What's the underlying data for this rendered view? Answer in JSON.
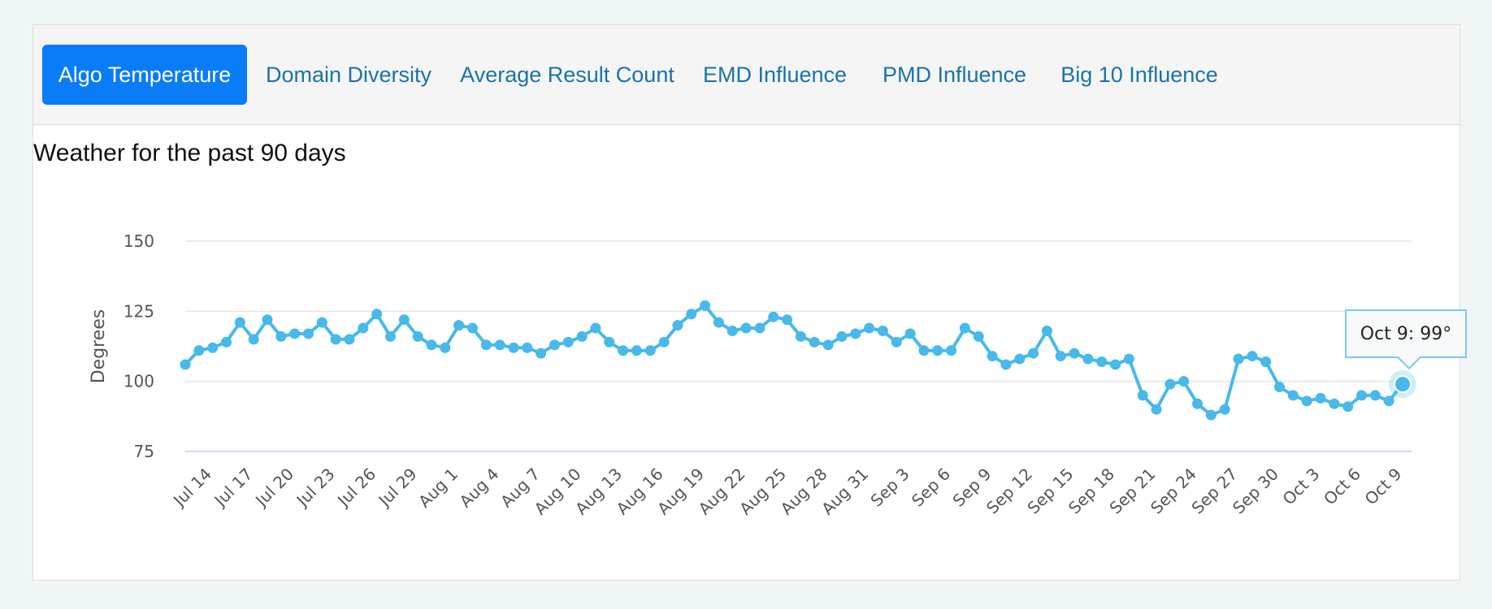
{
  "tabs": [
    {
      "label": "Algo Temperature",
      "active": true
    },
    {
      "label": "Domain Diversity",
      "active": false
    },
    {
      "label": "Average Result Count",
      "active": false
    },
    {
      "label": "EMD Influence",
      "active": false
    },
    {
      "label": "PMD Influence",
      "active": false
    },
    {
      "label": "Big 10 Influence",
      "active": false
    }
  ],
  "colors": {
    "accent": "#0a7cf7",
    "line": "#47b9ea",
    "tab_text": "#1a73a8"
  },
  "chart_data": {
    "type": "line",
    "title": "Weather for the past 90 days",
    "xlabel": "",
    "ylabel": "Degrees",
    "ylim": [
      75,
      150
    ],
    "yticks": [
      75,
      100,
      125,
      150
    ],
    "grid": true,
    "x": [
      "Jul 12",
      "Jul 13",
      "Jul 14",
      "Jul 15",
      "Jul 16",
      "Jul 17",
      "Jul 18",
      "Jul 19",
      "Jul 20",
      "Jul 21",
      "Jul 22",
      "Jul 23",
      "Jul 24",
      "Jul 25",
      "Jul 26",
      "Jul 27",
      "Jul 28",
      "Jul 29",
      "Jul 30",
      "Jul 31",
      "Aug 1",
      "Aug 2",
      "Aug 3",
      "Aug 4",
      "Aug 5",
      "Aug 6",
      "Aug 7",
      "Aug 8",
      "Aug 9",
      "Aug 10",
      "Aug 11",
      "Aug 12",
      "Aug 13",
      "Aug 14",
      "Aug 15",
      "Aug 16",
      "Aug 17",
      "Aug 18",
      "Aug 19",
      "Aug 20",
      "Aug 21",
      "Aug 22",
      "Aug 23",
      "Aug 24",
      "Aug 25",
      "Aug 26",
      "Aug 27",
      "Aug 28",
      "Aug 29",
      "Aug 30",
      "Aug 31",
      "Sep 1",
      "Sep 2",
      "Sep 3",
      "Sep 4",
      "Sep 5",
      "Sep 6",
      "Sep 7",
      "Sep 8",
      "Sep 9",
      "Sep 10",
      "Sep 11",
      "Sep 12",
      "Sep 13",
      "Sep 14",
      "Sep 15",
      "Sep 16",
      "Sep 17",
      "Sep 18",
      "Sep 19",
      "Sep 20",
      "Sep 21",
      "Sep 22",
      "Sep 23",
      "Sep 24",
      "Sep 25",
      "Sep 26",
      "Sep 27",
      "Sep 28",
      "Sep 29",
      "Sep 30",
      "Oct 1",
      "Oct 2",
      "Oct 3",
      "Oct 4",
      "Oct 5",
      "Oct 6",
      "Oct 7",
      "Oct 8",
      "Oct 9"
    ],
    "tick_labels": [
      "Jul 14",
      "Jul 17",
      "Jul 20",
      "Jul 23",
      "Jul 26",
      "Jul 29",
      "Aug 1",
      "Aug 4",
      "Aug 7",
      "Aug 10",
      "Aug 13",
      "Aug 16",
      "Aug 19",
      "Aug 22",
      "Aug 25",
      "Aug 28",
      "Aug 31",
      "Sep 3",
      "Sep 6",
      "Sep 9",
      "Sep 12",
      "Sep 15",
      "Sep 18",
      "Sep 21",
      "Sep 24",
      "Sep 27",
      "Sep 30",
      "Oct 3",
      "Oct 6",
      "Oct 9"
    ],
    "series": [
      {
        "name": "Temperature",
        "values": [
          106,
          111,
          112,
          114,
          121,
          115,
          122,
          116,
          117,
          117,
          121,
          115,
          115,
          119,
          124,
          116,
          122,
          116,
          113,
          112,
          120,
          119,
          113,
          113,
          112,
          112,
          110,
          113,
          114,
          116,
          119,
          114,
          111,
          111,
          111,
          114,
          120,
          124,
          127,
          121,
          118,
          119,
          119,
          123,
          122,
          116,
          114,
          113,
          116,
          117,
          119,
          118,
          114,
          117,
          111,
          111,
          111,
          119,
          116,
          109,
          106,
          108,
          110,
          118,
          109,
          110,
          108,
          107,
          106,
          108,
          95,
          90,
          99,
          100,
          92,
          88,
          90,
          108,
          109,
          107,
          98,
          95,
          93,
          94,
          92,
          91,
          95,
          95,
          93,
          99
        ]
      }
    ],
    "highlight": {
      "label": "Oct 9",
      "value": 99
    }
  },
  "tooltip_text": "Oct 9: 99°"
}
